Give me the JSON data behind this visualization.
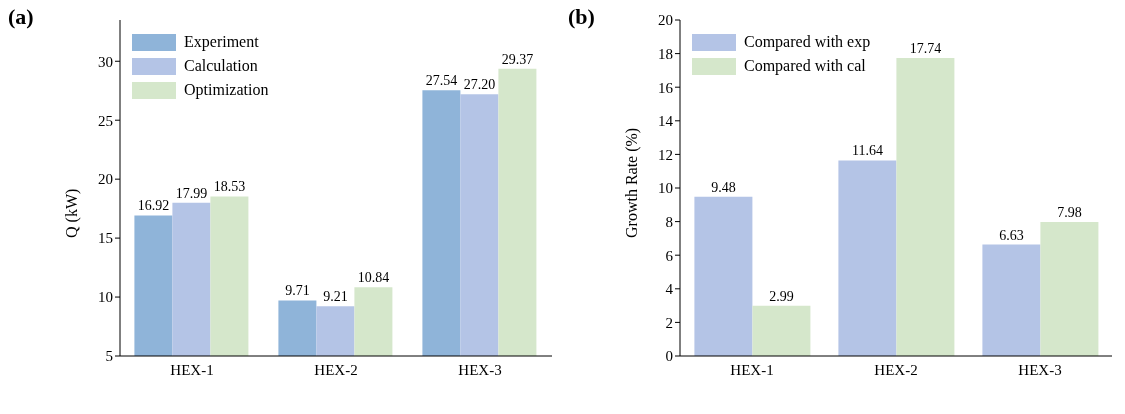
{
  "chart_data": [
    {
      "type": "bar",
      "title": "(a)",
      "ylabel": "Q (kW)",
      "categories": [
        "HEX-1",
        "HEX-2",
        "HEX-3"
      ],
      "series": [
        {
          "name": "Experiment",
          "color": "#8fb4d9",
          "values": [
            16.92,
            9.71,
            27.54
          ]
        },
        {
          "name": "Calculation",
          "color": "#b4c4e6",
          "values": [
            17.99,
            9.21,
            27.2
          ],
          "value_labels": [
            "17.99",
            "9.21",
            "27.20"
          ]
        },
        {
          "name": "Optimization",
          "color": "#d5e7cb",
          "values": [
            18.53,
            10.84,
            29.37
          ]
        }
      ],
      "ylim": [
        5,
        33.5
      ],
      "yticks": [
        5,
        10,
        15,
        20,
        25,
        30
      ],
      "data_labels": true,
      "legend": "top left",
      "grid": false
    },
    {
      "type": "bar",
      "title": "(b)",
      "ylabel": "Growth Rate (%)",
      "categories": [
        "HEX-1",
        "HEX-2",
        "HEX-3"
      ],
      "series": [
        {
          "name": "Compared with exp",
          "color": "#b4c4e6",
          "values": [
            9.48,
            11.64,
            6.63
          ]
        },
        {
          "name": "Compared with cal",
          "color": "#d5e7cb",
          "values": [
            2.99,
            17.74,
            7.98
          ]
        }
      ],
      "ylim": [
        0,
        20
      ],
      "yticks": [
        0,
        2,
        4,
        6,
        8,
        10,
        12,
        14,
        16,
        18,
        20
      ],
      "data_labels": true,
      "legend": "top left",
      "grid": false
    }
  ]
}
